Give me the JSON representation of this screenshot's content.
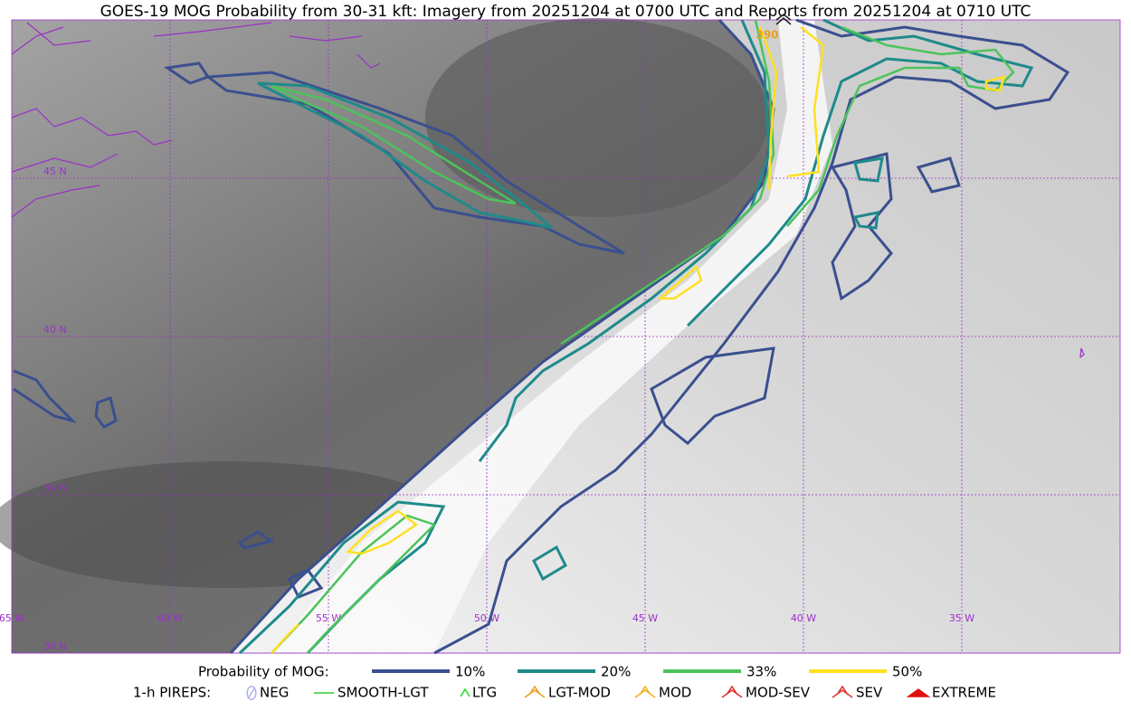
{
  "title": "GOES-19 MOG Probability from 30-31 kft: Imagery from 20251204 at 0700 UTC and Reports from 20251204 at 0710 UTC",
  "annotation": "390",
  "grid_labels": {
    "lat": [
      "45 N",
      "40 N",
      "35 N",
      "30 N"
    ],
    "lon": [
      "65 W",
      "60 W",
      "55 W",
      "50 W",
      "45 W",
      "40 W",
      "35 W"
    ]
  },
  "legend": {
    "mog_title": "Probability of MOG:",
    "mog_items": [
      {
        "label": "10%",
        "color": "#3b4f8f"
      },
      {
        "label": "20%",
        "color": "#1f8a8a"
      },
      {
        "label": "33%",
        "color": "#4cc35c"
      },
      {
        "label": "50%",
        "color": "#ffe020"
      }
    ],
    "pirep_title": "1-h PIREPS:",
    "pirep_items": [
      {
        "label": "NEG",
        "color": "#b0b0f0"
      },
      {
        "label": "SMOOTH-LGT",
        "color": "#33cc33"
      },
      {
        "label": "LTG",
        "color": "#22dd22"
      },
      {
        "label": "LGT-MOD",
        "color": "#f0a020"
      },
      {
        "label": "MOD",
        "color": "#f0b020"
      },
      {
        "label": "MOD-SEV",
        "color": "#e03030"
      },
      {
        "label": "SEV",
        "color": "#e03030"
      },
      {
        "label": "EXTREME",
        "color": "#e01010"
      }
    ]
  }
}
